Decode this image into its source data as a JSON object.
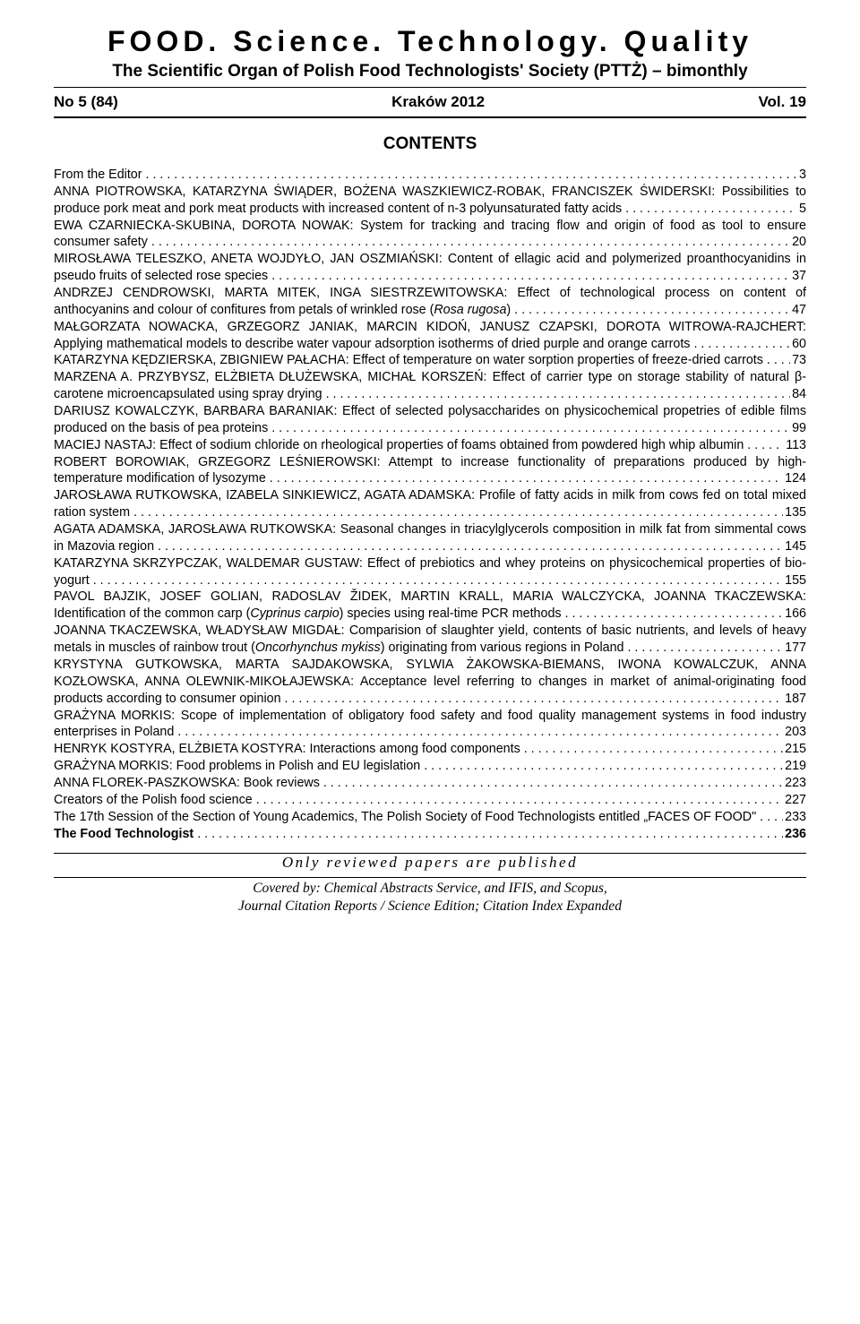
{
  "header": {
    "journal_title": "FOOD. Science. Technology. Quality",
    "journal_subtitle": "The Scientific Organ of Polish Food Technologists' Society (PTTŻ) – bimonthly",
    "issue_no": "No 5 (84)",
    "city_year": "Kraków 2012",
    "volume": "Vol. 19"
  },
  "contents_heading": "CONTENTS",
  "entries": [
    {
      "text_lines": [
        "From the Editor"
      ],
      "page": "3"
    },
    {
      "text_lines": [
        "ANNA PIOTROWSKA, KATARZYNA ŚWIĄDER, BOŻENA WASZKIEWICZ-ROBAK, FRANCISZEK ŚWIDERSKI: Possibilities to produce pork meat and pork meat products with increased content of n-3 polyunsaturated fatty acids"
      ],
      "page": "5"
    },
    {
      "text_lines": [
        "EWA CZARNIECKA-SKUBINA, DOROTA NOWAK: System for tracking and tracing flow and origin of food as tool to ensure consumer safety"
      ],
      "page": "20"
    },
    {
      "text_lines": [
        "MIROSŁAWA TELESZKO, ANETA WOJDYŁO, JAN OSZMIAŃSKI: Content of ellagic acid and polymerized proanthocyanidins in pseudo fruits of selected rose species"
      ],
      "page": "37"
    },
    {
      "text_lines": [
        "ANDRZEJ CENDROWSKI, MARTA MITEK, INGA SIESTRZEWITOWSKA: Effect of technological process on content of anthocyanins and colour of confitures from petals of wrinkled rose (<i>Rosa rugosa</i>)"
      ],
      "page": "47"
    },
    {
      "text_lines": [
        "MAŁGORZATA NOWACKA, GRZEGORZ JANIAK, MARCIN KIDOŃ, JANUSZ CZAPSKI, DOROTA WITROWA-RAJCHERT: Applying mathematical models to describe water vapour adsorption isotherms of dried purple and orange carrots"
      ],
      "page": "60"
    },
    {
      "text_lines": [
        "KATARZYNA KĘDZIERSKA, ZBIGNIEW PAŁACHA: Effect of temperature on water sorption properties of freeze-dried carrots"
      ],
      "page": "73"
    },
    {
      "text_lines": [
        "MARZENA A. PRZYBYSZ, ELŻBIETA DŁUŻEWSKA, MICHAŁ KORSZEŃ: Effect of carrier type on storage stability of natural β-carotene microencapsulated using spray drying"
      ],
      "page": "84"
    },
    {
      "text_lines": [
        "DARIUSZ KOWALCZYK, BARBARA BARANIAK: Effect of selected polysaccharides on physicochemical propetries of edible films produced on the basis of pea proteins"
      ],
      "page": "99"
    },
    {
      "text_lines": [
        "MACIEJ NASTAJ: Effect of sodium chloride on rheological properties of foams obtained from powdered high whip albumin"
      ],
      "page": "113"
    },
    {
      "text_lines": [
        "ROBERT BOROWIAK, GRZEGORZ LEŚNIEROWSKI: Attempt to increase functionality of preparations produced by high-temperature modification of lysozyme"
      ],
      "page": "124"
    },
    {
      "text_lines": [
        "JAROSŁAWA RUTKOWSKA, IZABELA SINKIEWICZ, AGATA ADAMSKA: Profile of fatty acids in milk from cows fed on total mixed ration system"
      ],
      "page": "135"
    },
    {
      "text_lines": [
        "AGATA ADAMSKA, JAROSŁAWA RUTKOWSKA: Seasonal changes in triacylglycerols composition in milk fat from simmental cows in Mazovia region"
      ],
      "page": "145"
    },
    {
      "text_lines": [
        "KATARZYNA SKRZYPCZAK, WALDEMAR GUSTAW: Effect of prebiotics and whey proteins on physicochemical properties of bio-yogurt"
      ],
      "page": "155"
    },
    {
      "text_lines": [
        "PAVOL BAJZIK, JOSEF GOLIAN, RADOSLAV ŽIDEK, MARTIN KRALL, MARIA WALCZYCKA, JOANNA TKACZEWSKA: Identification of the common carp (<i>Cyprinus carpio</i>) species using real-time PCR methods"
      ],
      "page": "166"
    },
    {
      "text_lines": [
        "JOANNA TKACZEWSKA, WŁADYSŁAW MIGDAŁ: Comparision of slaughter yield, contents of basic nutrients, and levels of heavy metals in muscles of rainbow trout (<i>Oncorhynchus mykiss</i>) originating from various regions in Poland"
      ],
      "page": "177"
    },
    {
      "text_lines": [
        "KRYSTYNA GUTKOWSKA, MARTA SAJDAKOWSKA, SYLWIA ŻAKOWSKA-BIEMANS, IWONA KOWALCZUK, ANNA KOZŁOWSKA, ANNA OLEWNIK-MIKOŁAJEWSKA: Acceptance level referring to changes in market of animal-originating food products according to consumer opinion"
      ],
      "page": "187"
    },
    {
      "text_lines": [
        "GRAŻYNA MORKIS: Scope of implementation of obligatory food safety and food quality management systems in food industry enterprises in Poland"
      ],
      "page": "203"
    },
    {
      "text_lines": [
        "HENRYK KOSTYRA, ELŻBIETA KOSTYRA: Interactions among food components"
      ],
      "page": "215"
    },
    {
      "text_lines": [
        "GRAŻYNA MORKIS: Food problems in Polish and EU legislation"
      ],
      "page": "219"
    },
    {
      "text_lines": [
        "ANNA FLOREK-PASZKOWSKA: Book reviews"
      ],
      "page": "223"
    },
    {
      "text_lines": [
        "Creators of the Polish food science"
      ],
      "page": "227"
    },
    {
      "text_lines": [
        "The 17th Session of the Section of Young Academics, The Polish Society of Food Technologists  entitled „FACES OF FOOD\""
      ],
      "page": "233"
    },
    {
      "text_lines": [
        "<b>The Food Technologist</b>"
      ],
      "page": "236",
      "bold": true
    }
  ],
  "footer": {
    "reviewed": "Only reviewed papers are published",
    "covered_line1": "Covered by: Chemical Abstracts Service, and IFIS, and Scopus,",
    "covered_line2": "Journal Citation Reports / Science Edition; Citation Index Expanded"
  }
}
